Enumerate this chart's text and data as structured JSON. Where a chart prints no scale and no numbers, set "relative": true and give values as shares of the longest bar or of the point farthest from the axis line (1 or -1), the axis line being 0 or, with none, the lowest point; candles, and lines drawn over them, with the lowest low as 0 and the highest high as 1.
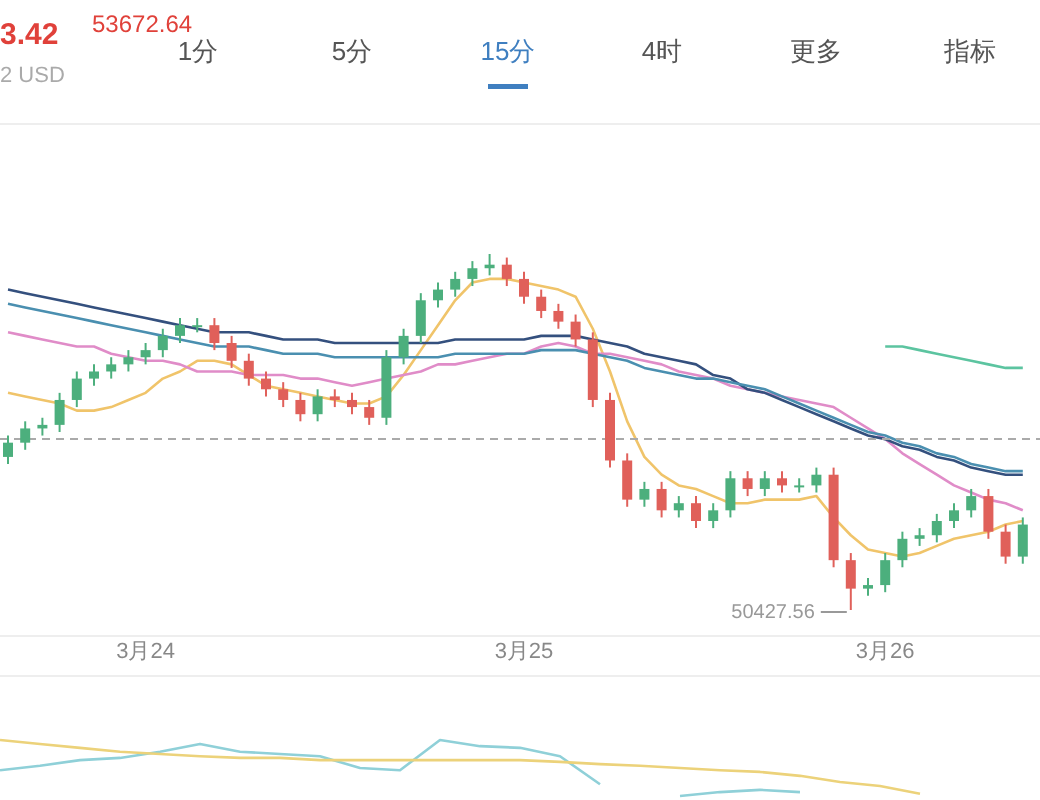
{
  "chart_data": [
    {
      "type": "candlestick",
      "relative": true,
      "categories": [
        null,
        null,
        null,
        null,
        null,
        null,
        null,
        null,
        "3月24",
        null,
        null,
        null,
        null,
        null,
        null,
        null,
        null,
        null,
        null,
        null,
        null,
        null,
        null,
        null,
        null,
        null,
        null,
        null,
        null,
        null,
        "3月25",
        null,
        null,
        null,
        null,
        null,
        null,
        null,
        null,
        null,
        null,
        null,
        null,
        null,
        null,
        null,
        null,
        null,
        null,
        null,
        null,
        "3月26",
        null,
        null,
        null,
        null,
        null,
        null,
        null,
        null
      ],
      "ohlc": [
        [
          0.43,
          0.49,
          0.41,
          0.47
        ],
        [
          0.47,
          0.53,
          0.45,
          0.51
        ],
        [
          0.51,
          0.54,
          0.49,
          0.52
        ],
        [
          0.52,
          0.61,
          0.5,
          0.59
        ],
        [
          0.59,
          0.67,
          0.57,
          0.65
        ],
        [
          0.65,
          0.69,
          0.63,
          0.67
        ],
        [
          0.67,
          0.71,
          0.65,
          0.69
        ],
        [
          0.69,
          0.73,
          0.67,
          0.71
        ],
        [
          0.71,
          0.75,
          0.69,
          0.73
        ],
        [
          0.73,
          0.79,
          0.71,
          0.77
        ],
        [
          0.77,
          0.82,
          0.75,
          0.8
        ],
        [
          0.8,
          0.82,
          0.78,
          0.8
        ],
        [
          0.8,
          0.82,
          0.73,
          0.75
        ],
        [
          0.75,
          0.77,
          0.68,
          0.7
        ],
        [
          0.7,
          0.72,
          0.63,
          0.65
        ],
        [
          0.65,
          0.67,
          0.6,
          0.62
        ],
        [
          0.62,
          0.64,
          0.57,
          0.59
        ],
        [
          0.59,
          0.61,
          0.53,
          0.55
        ],
        [
          0.55,
          0.62,
          0.53,
          0.6
        ],
        [
          0.6,
          0.62,
          0.57,
          0.59
        ],
        [
          0.59,
          0.61,
          0.55,
          0.57
        ],
        [
          0.57,
          0.59,
          0.52,
          0.54
        ],
        [
          0.54,
          0.73,
          0.52,
          0.71
        ],
        [
          0.71,
          0.79,
          0.69,
          0.77
        ],
        [
          0.77,
          0.89,
          0.75,
          0.87
        ],
        [
          0.87,
          0.92,
          0.85,
          0.9
        ],
        [
          0.9,
          0.95,
          0.88,
          0.93
        ],
        [
          0.93,
          0.98,
          0.91,
          0.96
        ],
        [
          0.96,
          1.0,
          0.94,
          0.97
        ],
        [
          0.97,
          0.99,
          0.91,
          0.93
        ],
        [
          0.93,
          0.95,
          0.86,
          0.88
        ],
        [
          0.88,
          0.9,
          0.82,
          0.84
        ],
        [
          0.84,
          0.86,
          0.79,
          0.81
        ],
        [
          0.81,
          0.83,
          0.74,
          0.76
        ],
        [
          0.76,
          0.78,
          0.57,
          0.59
        ],
        [
          0.59,
          0.61,
          0.4,
          0.42
        ],
        [
          0.42,
          0.44,
          0.29,
          0.31
        ],
        [
          0.31,
          0.36,
          0.29,
          0.34
        ],
        [
          0.34,
          0.36,
          0.26,
          0.28
        ],
        [
          0.28,
          0.32,
          0.26,
          0.3
        ],
        [
          0.3,
          0.32,
          0.23,
          0.25
        ],
        [
          0.25,
          0.3,
          0.23,
          0.28
        ],
        [
          0.28,
          0.39,
          0.26,
          0.37
        ],
        [
          0.37,
          0.39,
          0.32,
          0.34
        ],
        [
          0.34,
          0.39,
          0.32,
          0.37
        ],
        [
          0.37,
          0.39,
          0.33,
          0.35
        ],
        [
          0.35,
          0.37,
          0.33,
          0.35
        ],
        [
          0.35,
          0.4,
          0.33,
          0.38
        ],
        [
          0.38,
          0.4,
          0.12,
          0.14
        ],
        [
          0.14,
          0.16,
          0.0,
          0.06
        ],
        [
          0.06,
          0.09,
          0.04,
          0.07
        ],
        [
          0.07,
          0.16,
          0.05,
          0.14
        ],
        [
          0.14,
          0.22,
          0.12,
          0.2
        ],
        [
          0.2,
          0.23,
          0.18,
          0.21
        ],
        [
          0.21,
          0.27,
          0.19,
          0.25
        ],
        [
          0.25,
          0.3,
          0.23,
          0.28
        ],
        [
          0.28,
          0.34,
          0.26,
          0.32
        ],
        [
          0.32,
          0.34,
          0.2,
          0.22
        ],
        [
          0.22,
          0.24,
          0.13,
          0.15
        ],
        [
          0.15,
          0.26,
          0.13,
          0.24
        ]
      ],
      "series": [
        {
          "type": "line",
          "color": "#f0c46a",
          "values": [
            0.61,
            0.6,
            0.59,
            0.58,
            0.56,
            0.56,
            0.57,
            0.59,
            0.61,
            0.65,
            0.67,
            0.7,
            0.7,
            0.69,
            0.66,
            0.63,
            0.62,
            0.61,
            0.6,
            0.59,
            0.58,
            0.58,
            0.6,
            0.66,
            0.73,
            0.8,
            0.87,
            0.92,
            0.93,
            0.93,
            0.92,
            0.91,
            0.9,
            0.88,
            0.79,
            0.67,
            0.53,
            0.43,
            0.38,
            0.35,
            0.34,
            0.32,
            0.3,
            0.3,
            0.31,
            0.31,
            0.31,
            0.32,
            0.26,
            0.21,
            0.17,
            0.16,
            0.15,
            0.16,
            0.18,
            0.2,
            0.21,
            0.22,
            0.24,
            0.25
          ]
        },
        {
          "type": "line",
          "color": "#e08cc8",
          "values": [
            0.78,
            0.77,
            0.76,
            0.75,
            0.74,
            0.74,
            0.72,
            0.71,
            0.7,
            0.7,
            0.69,
            0.67,
            0.67,
            0.67,
            0.66,
            0.66,
            0.66,
            0.65,
            0.65,
            0.64,
            0.63,
            0.64,
            0.65,
            0.66,
            0.67,
            0.69,
            0.69,
            0.7,
            0.71,
            0.72,
            0.72,
            0.74,
            0.75,
            0.74,
            0.72,
            0.72,
            0.71,
            0.7,
            0.69,
            0.67,
            0.66,
            0.65,
            0.63,
            0.62,
            0.61,
            0.6,
            0.59,
            0.58,
            0.57,
            0.54,
            0.51,
            0.48,
            0.44,
            0.41,
            0.38,
            0.35,
            0.33,
            0.31,
            0.3,
            0.28
          ]
        },
        {
          "type": "line",
          "color": "#34507e",
          "values": [
            0.9,
            0.89,
            0.88,
            0.87,
            0.86,
            0.85,
            0.84,
            0.83,
            0.82,
            0.81,
            0.8,
            0.79,
            0.78,
            0.78,
            0.78,
            0.77,
            0.76,
            0.76,
            0.76,
            0.75,
            0.75,
            0.75,
            0.75,
            0.75,
            0.75,
            0.75,
            0.76,
            0.76,
            0.76,
            0.76,
            0.76,
            0.77,
            0.77,
            0.77,
            0.76,
            0.75,
            0.74,
            0.72,
            0.71,
            0.7,
            0.69,
            0.66,
            0.65,
            0.62,
            0.61,
            0.59,
            0.57,
            0.55,
            0.53,
            0.51,
            0.49,
            0.48,
            0.46,
            0.45,
            0.43,
            0.42,
            0.4,
            0.39,
            0.38,
            0.38
          ]
        },
        {
          "type": "line",
          "color": "#4a8fb0",
          "values": [
            0.86,
            0.85,
            0.84,
            0.83,
            0.82,
            0.81,
            0.8,
            0.79,
            0.78,
            0.77,
            0.76,
            0.75,
            0.74,
            0.74,
            0.74,
            0.73,
            0.72,
            0.72,
            0.72,
            0.71,
            0.71,
            0.71,
            0.71,
            0.71,
            0.71,
            0.71,
            0.72,
            0.72,
            0.72,
            0.72,
            0.72,
            0.73,
            0.73,
            0.73,
            0.72,
            0.71,
            0.7,
            0.68,
            0.67,
            0.66,
            0.65,
            0.65,
            0.64,
            0.63,
            0.62,
            0.6,
            0.58,
            0.56,
            0.54,
            0.52,
            0.5,
            0.49,
            0.47,
            0.46,
            0.44,
            0.43,
            0.41,
            0.4,
            0.39,
            0.39
          ]
        },
        {
          "type": "line",
          "color": "#5cc4a0",
          "values": [
            null,
            null,
            null,
            null,
            null,
            null,
            null,
            null,
            null,
            null,
            null,
            null,
            null,
            null,
            null,
            null,
            null,
            null,
            null,
            null,
            null,
            null,
            null,
            null,
            null,
            null,
            null,
            null,
            null,
            null,
            null,
            null,
            null,
            null,
            null,
            null,
            null,
            null,
            null,
            null,
            null,
            null,
            null,
            null,
            null,
            null,
            null,
            null,
            null,
            null,
            null,
            0.74,
            0.74,
            0.73,
            0.72,
            0.71,
            0.7,
            0.69,
            0.68,
            0.68
          ]
        }
      ],
      "ref_lines": [
        {
          "axis": "y",
          "value": 0.48,
          "color": "#aaaaaa",
          "line_style": "dashed"
        }
      ],
      "annotations": [
        "3.42",
        "53672.64",
        "2 USD",
        "1分",
        "5分",
        "15分",
        "4时",
        "更多",
        "指标",
        "50427.56"
      ]
    },
    {
      "type": "line",
      "relative": true,
      "categories": [
        null,
        null,
        null,
        null,
        null,
        null,
        null,
        null,
        null,
        null,
        null,
        null,
        null,
        null,
        null,
        null,
        null,
        null,
        null,
        null,
        null,
        null,
        null,
        null,
        null,
        null,
        null
      ],
      "series": [
        {
          "color": "#8fd0d8",
          "values": [
            0.46,
            0.54,
            0.64,
            0.68,
            0.79,
            0.93,
            0.79,
            0.75,
            0.71,
            0.5,
            0.46,
            1.0,
            0.89,
            0.86,
            0.71,
            0.21,
            null,
            0.0,
            0.07,
            0.11,
            0.07,
            null,
            null,
            null,
            null,
            null,
            null
          ]
        },
        {
          "color": "#ecd27a",
          "values": [
            1.0,
            0.93,
            0.86,
            0.79,
            0.75,
            0.71,
            0.68,
            0.68,
            0.64,
            0.64,
            0.64,
            0.64,
            0.64,
            0.64,
            0.61,
            0.57,
            0.54,
            0.5,
            0.46,
            0.43,
            0.36,
            0.25,
            0.18,
            0.04,
            null,
            null,
            null
          ]
        }
      ]
    }
  ]
}
